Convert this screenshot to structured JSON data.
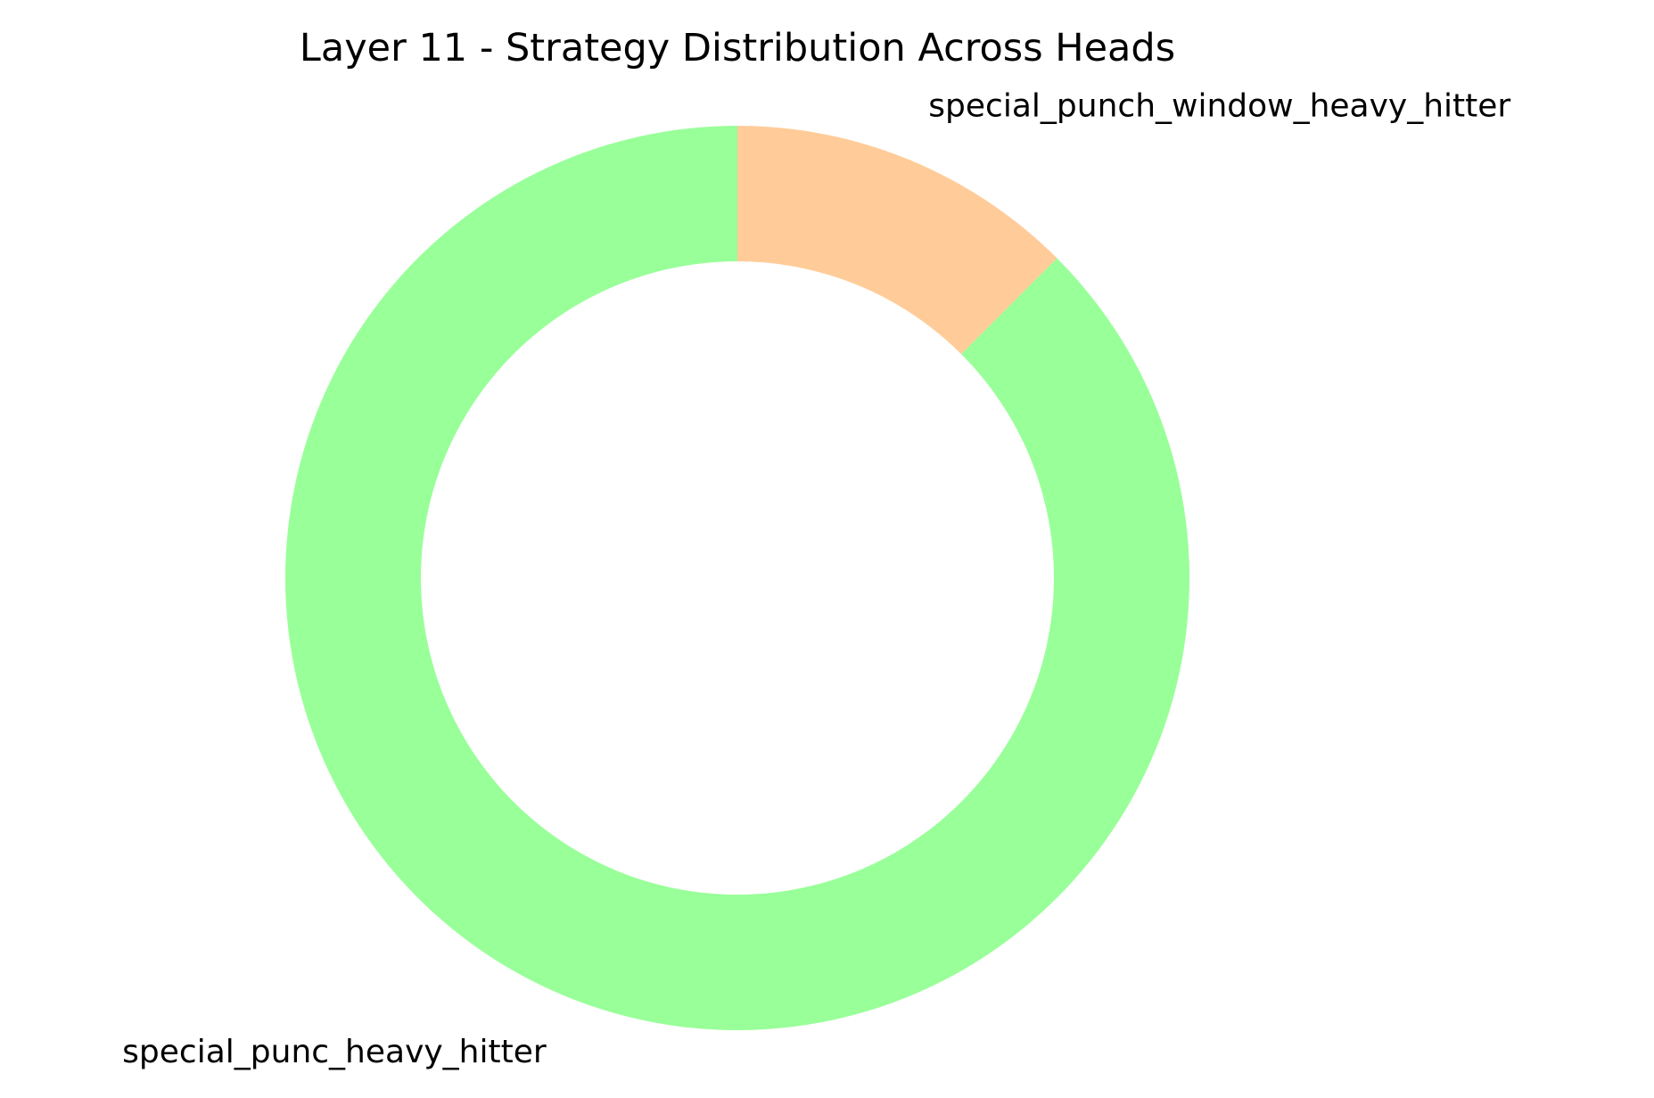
{
  "chart_data": {
    "type": "pie",
    "variant": "donut",
    "title": "Layer 11 - Strategy Distribution Across Heads",
    "start_angle_deg": 90,
    "direction": "clockwise",
    "slices": [
      {
        "label": "special_punch_window_heavy_hitter",
        "value": 1,
        "color": "#ffcc99"
      },
      {
        "label": "special_punc_heavy_hitter",
        "value": 7,
        "color": "#99ff99"
      }
    ]
  }
}
